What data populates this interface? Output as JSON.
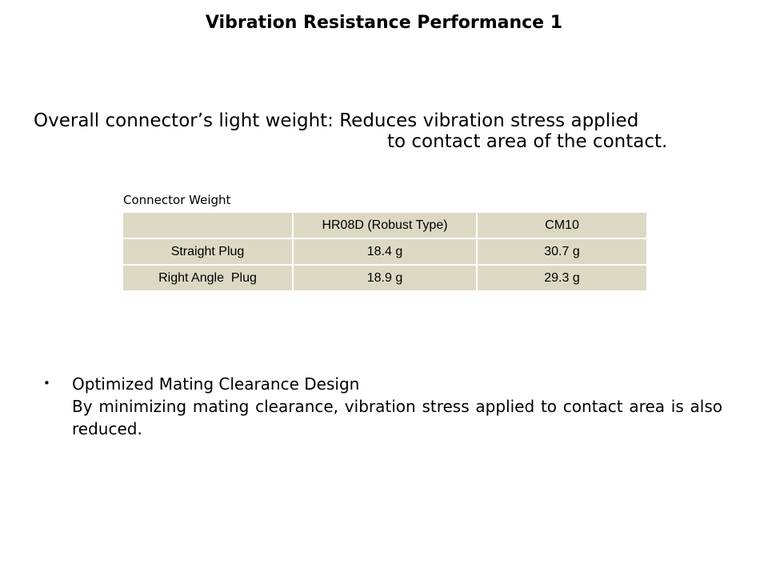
{
  "title": "Vibration Resistance Performance 1",
  "lead": {
    "line1": "Overall connector’s light weight: Reduces vibration stress applied",
    "line2": "to contact area of the contact."
  },
  "table": {
    "caption": "Connector Weight",
    "headers": [
      "",
      "HR08D (Robust Type)",
      "CM10"
    ],
    "rows": [
      [
        "Straight Plug",
        "18.4 g",
        "30.7 g"
      ],
      [
        "Right Angle  Plug",
        "18.9 g",
        "29.3 g"
      ]
    ],
    "cell_color": "#ddd8c4"
  },
  "bullet": {
    "marker": "•",
    "heading": "Optimized Mating Clearance Design",
    "body": "By minimizing mating clearance, vibration stress applied to contact area is also reduced."
  }
}
